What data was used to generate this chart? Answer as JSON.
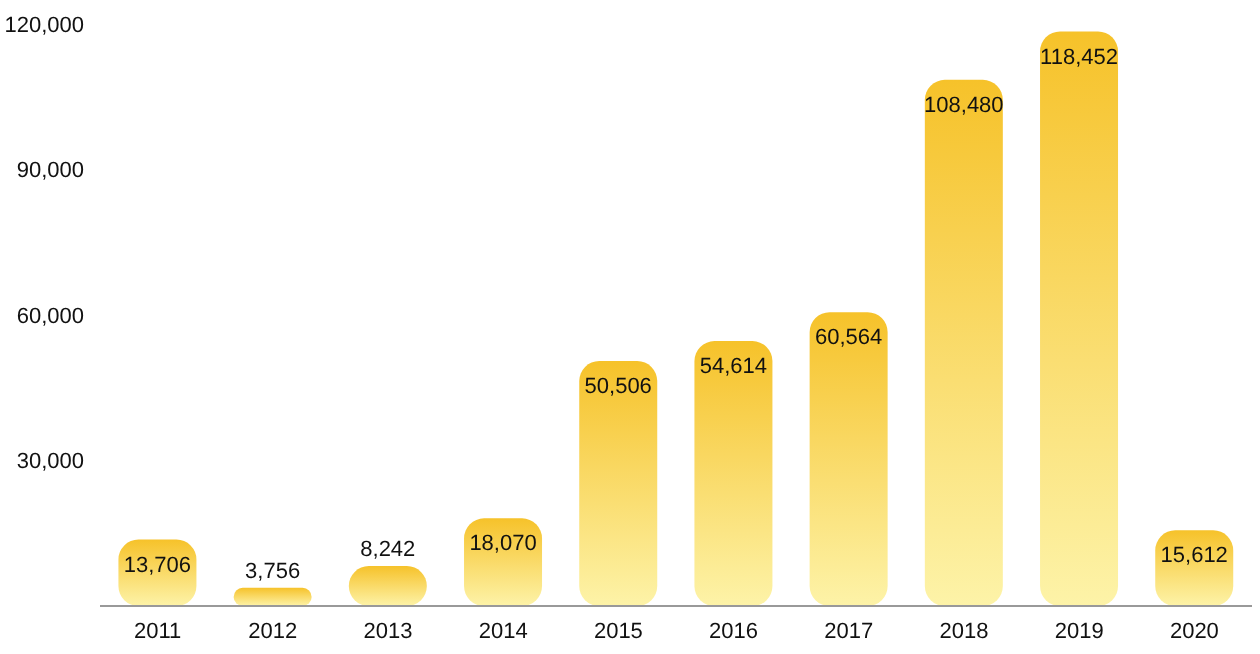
{
  "chart_data": {
    "type": "bar",
    "categories": [
      "2011",
      "2012",
      "2013",
      "2014",
      "2015",
      "2016",
      "2017",
      "2018",
      "2019",
      "2020"
    ],
    "values": [
      13706,
      3756,
      8242,
      18070,
      50506,
      54614,
      60564,
      108480,
      118452,
      15612
    ],
    "value_labels": [
      "13,706",
      "3,756",
      "8,242",
      "18,070",
      "50,506",
      "54,614",
      "60,564",
      "108,480",
      "118,452",
      "15,612"
    ],
    "color": "#f6c22a",
    "ylim": [
      0,
      120000
    ],
    "yticks": [
      {
        "value": 30000,
        "label": "30,000"
      },
      {
        "value": 60000,
        "label": "60,000"
      },
      {
        "value": 90000,
        "label": "90,000"
      },
      {
        "value": 120000,
        "label": "120,000"
      }
    ],
    "grid": false
  }
}
